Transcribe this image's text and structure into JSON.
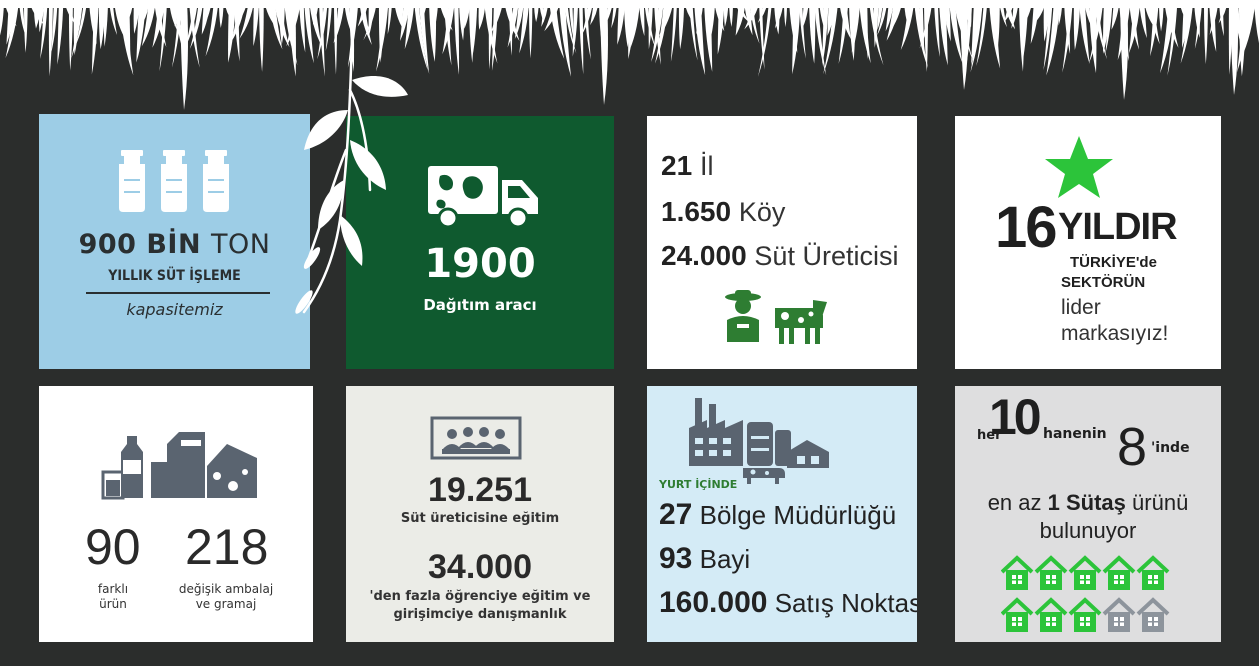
{
  "colors": {
    "background": "#2b2d2c",
    "card_light_blue": "#9dcde6",
    "card_dark_green": "#0f5a2f",
    "accent_green": "#2cc43a",
    "icon_green": "#2e7d32",
    "icon_gray": "#5a6470"
  },
  "capacity": {
    "value": "900 BİN",
    "unit": "TON",
    "subtitle": "YILLIK SÜT İŞLEME",
    "caption": "kapasitemiz",
    "icon": "milk-can-icon"
  },
  "distribution": {
    "value": "1900",
    "label": "Dağıtım aracı",
    "icon": "truck-icon"
  },
  "reach": {
    "provinces_value": "21",
    "provinces_label": "İl",
    "villages_value": "1.650",
    "villages_label": "Köy",
    "producers_value": "24.000",
    "producers_label": "Süt Üreticisi",
    "icons": [
      "farmer-icon",
      "cow-icon"
    ]
  },
  "leadership": {
    "years_value": "16",
    "years_label": "YILDIR",
    "line1": "TÜRKİYE'de",
    "line2": "SEKTÖRÜN",
    "line3": "lider",
    "line4": "markasıyız!",
    "icon": "star-icon"
  },
  "products": {
    "products_value": "90",
    "products_line1": "farklı",
    "products_line2": "ürün",
    "packages_value": "218",
    "packages_line1": "değişik ambalaj",
    "packages_line2": "ve gramaj",
    "icon": "dairy-products-icon"
  },
  "training": {
    "producers_value": "19.251",
    "producers_label": "Süt üreticisine eğitim",
    "students_value": "34.000",
    "students_line1": "'den fazla öğrenciye eğitim ve",
    "students_line2": "girişimciye danışmanlık",
    "icon": "audience-icon"
  },
  "network": {
    "tag": "YURT İÇİNDE",
    "regions_value": "27",
    "regions_label": "Bölge Müdürlüğü",
    "dealers_value": "93",
    "dealers_label": "Bayi",
    "points_value": "160.000",
    "points_label": "Satış Noktası",
    "icon": "factory-icon"
  },
  "households": {
    "her": "her",
    "ten": "10",
    "hanenin": "hanenin",
    "eight": "8",
    "inde": "'inde",
    "line1_prefix": "en az",
    "line1_bold": "1 Sütaş",
    "line1_suffix": "ürünü",
    "line2": "bulunuyor",
    "houses_total": 10,
    "houses_highlighted": 8,
    "icon": "house-icon"
  }
}
